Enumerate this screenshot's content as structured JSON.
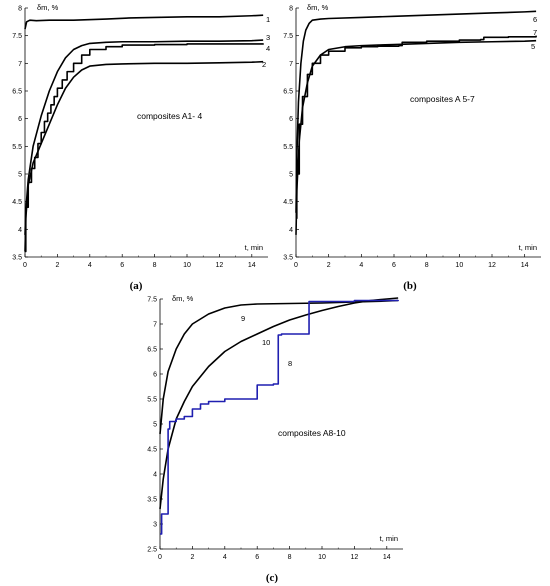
{
  "chart_data": [
    {
      "type": "line",
      "panel_label": "(a)",
      "annotation": "composites A1- 4",
      "xlabel": "t, min",
      "ylabel": "δm, %",
      "xlim": [
        0,
        15
      ],
      "ylim": [
        3.5,
        8
      ],
      "xticks": [
        "0",
        "2",
        "4",
        "6",
        "8",
        "10",
        "12",
        "14"
      ],
      "yticks": [
        "3.5",
        "4",
        "4.5",
        "5",
        "5.5",
        "6",
        "6.5",
        "7",
        "7.5",
        "8"
      ],
      "grid": false,
      "series": [
        {
          "label": "1",
          "color": "#000000",
          "step": false,
          "x": [
            0,
            0.1,
            0.3,
            0.7,
            1.5,
            3,
            5,
            6.5,
            8,
            10,
            12,
            14,
            14.7
          ],
          "y": [
            7.62,
            7.75,
            7.78,
            7.77,
            7.78,
            7.78,
            7.8,
            7.82,
            7.83,
            7.84,
            7.84,
            7.86,
            7.87
          ]
        },
        {
          "label": "2",
          "color": "#000000",
          "step": false,
          "x": [
            0,
            0.05,
            0.2,
            0.5,
            1,
            1.5,
            2,
            2.5,
            3,
            3.5,
            4,
            5,
            6,
            8,
            10,
            12,
            14,
            14.7
          ],
          "y": [
            3.6,
            4.2,
            4.8,
            5.2,
            5.55,
            5.9,
            6.25,
            6.55,
            6.75,
            6.88,
            6.95,
            6.98,
            6.99,
            7.0,
            7.0,
            7.01,
            7.02,
            7.03
          ]
        },
        {
          "label": "3",
          "color": "#000000",
          "step": false,
          "x": [
            0,
            0.05,
            0.2,
            0.5,
            1,
            1.5,
            2,
            2.5,
            3,
            3.5,
            4,
            5,
            6,
            8,
            10,
            12,
            14,
            14.7
          ],
          "y": [
            3.9,
            4.35,
            4.9,
            5.5,
            6.05,
            6.5,
            6.85,
            7.1,
            7.25,
            7.32,
            7.36,
            7.38,
            7.39,
            7.39,
            7.4,
            7.4,
            7.41,
            7.42
          ]
        },
        {
          "label": "4",
          "color": "#000000",
          "step": true,
          "x": [
            0,
            0.05,
            0.2,
            0.4,
            0.6,
            0.8,
            1,
            1.2,
            1.4,
            1.6,
            1.8,
            2,
            2.3,
            2.6,
            3,
            3.5,
            4,
            5,
            6,
            8,
            10,
            12,
            14,
            14.7
          ],
          "y": [
            3.6,
            4.4,
            4.85,
            5.1,
            5.3,
            5.55,
            5.75,
            5.95,
            6.1,
            6.25,
            6.4,
            6.55,
            6.7,
            6.85,
            7.0,
            7.15,
            7.25,
            7.3,
            7.33,
            7.34,
            7.35,
            7.35,
            7.35,
            7.36
          ]
        }
      ]
    },
    {
      "type": "line",
      "panel_label": "(b)",
      "annotation": "composites A 5-7",
      "xlabel": "t, min",
      "ylabel": "δm, %",
      "xlim": [
        0,
        15
      ],
      "ylim": [
        3.5,
        8
      ],
      "xticks": [
        "0",
        "2",
        "4",
        "6",
        "8",
        "10",
        "12",
        "14"
      ],
      "yticks": [
        "3.5",
        "4",
        "4.5",
        "5",
        "5.5",
        "6",
        "6.5",
        "7",
        "7.5",
        "8"
      ],
      "grid": false,
      "series": [
        {
          "label": "6",
          "color": "#000000",
          "step": false,
          "x": [
            0,
            0.05,
            0.15,
            0.3,
            0.45,
            0.6,
            0.8,
            1,
            1.5,
            2,
            4,
            6,
            8,
            10,
            12,
            14,
            14.7
          ],
          "y": [
            4.3,
            5.3,
            6.3,
            7.0,
            7.4,
            7.6,
            7.72,
            7.78,
            7.8,
            7.81,
            7.83,
            7.85,
            7.87,
            7.89,
            7.91,
            7.93,
            7.94
          ]
        },
        {
          "label": "7",
          "color": "#000000",
          "step": true,
          "x": [
            0,
            0.05,
            0.2,
            0.4,
            0.7,
            1,
            1.5,
            2,
            3,
            4,
            5,
            6.3,
            6.5,
            8,
            10,
            11.3,
            11.5,
            13,
            14.7
          ],
          "y": [
            4.2,
            5.0,
            5.9,
            6.4,
            6.8,
            7.0,
            7.15,
            7.22,
            7.28,
            7.3,
            7.31,
            7.32,
            7.38,
            7.4,
            7.42,
            7.43,
            7.47,
            7.48,
            7.5
          ]
        },
        {
          "label": "5",
          "color": "#000000",
          "step": false,
          "x": [
            0,
            0.05,
            0.2,
            0.4,
            0.7,
            1,
            1.5,
            2,
            3,
            4,
            5,
            6,
            8,
            10,
            12,
            14,
            14.7
          ],
          "y": [
            3.9,
            4.7,
            5.6,
            6.2,
            6.65,
            6.95,
            7.15,
            7.25,
            7.3,
            7.32,
            7.33,
            7.34,
            7.36,
            7.38,
            7.39,
            7.4,
            7.41
          ]
        }
      ]
    },
    {
      "type": "line",
      "panel_label": "(c)",
      "annotation": "composites A8-10",
      "xlabel": "t, min",
      "ylabel": "δm, %",
      "xlim": [
        0,
        15
      ],
      "ylim": [
        2.5,
        7.5
      ],
      "xticks": [
        "0",
        "2",
        "4",
        "6",
        "8",
        "10",
        "12",
        "14"
      ],
      "yticks": [
        "2.5",
        "3",
        "3.5",
        "4",
        "4.5",
        "5",
        "5.5",
        "6",
        "6.5",
        "7",
        "7.5"
      ],
      "grid": false,
      "series": [
        {
          "label": "9",
          "color": "#000000",
          "step": false,
          "x": [
            0,
            0.2,
            0.5,
            1,
            1.5,
            2,
            3,
            4,
            5,
            6,
            8,
            10,
            12,
            14,
            14.7
          ],
          "y": [
            4.8,
            5.5,
            6.05,
            6.5,
            6.8,
            7.0,
            7.2,
            7.32,
            7.38,
            7.4,
            7.41,
            7.42,
            7.44,
            7.46,
            7.47
          ]
        },
        {
          "label": "10",
          "color": "#000000",
          "step": false,
          "x": [
            0,
            0.2,
            0.5,
            1,
            1.5,
            2,
            3,
            4,
            5,
            6,
            7,
            8,
            9,
            10,
            11,
            12,
            13,
            14,
            14.7
          ],
          "y": [
            3.3,
            3.9,
            4.5,
            5.1,
            5.45,
            5.75,
            6.15,
            6.45,
            6.65,
            6.8,
            6.95,
            7.08,
            7.18,
            7.27,
            7.35,
            7.42,
            7.47,
            7.5,
            7.52
          ]
        },
        {
          "label": "8",
          "color": "#1f1fb0",
          "step": true,
          "x": [
            0,
            0.1,
            0.3,
            0.5,
            0.6,
            1,
            1.5,
            2,
            2.5,
            3,
            4,
            5,
            5.8,
            6,
            7,
            7.3,
            7.5,
            9,
            9.2,
            12,
            14.7
          ],
          "y": [
            2.8,
            3.2,
            3.2,
            4.9,
            5.05,
            5.1,
            5.15,
            5.3,
            5.4,
            5.45,
            5.5,
            5.5,
            5.5,
            5.78,
            5.8,
            6.78,
            6.8,
            6.8,
            7.45,
            7.47,
            7.48
          ]
        }
      ]
    }
  ]
}
